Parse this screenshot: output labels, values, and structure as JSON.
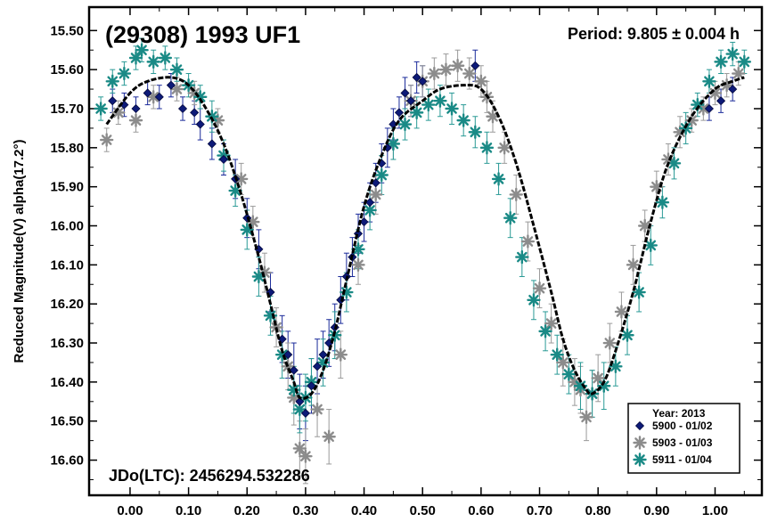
{
  "chart_data": {
    "type": "scatter",
    "title": "(29308) 1993 UF1",
    "period_label": "Period: 9.805 ± 0.004 h",
    "jdo_label": "JDo(LTC): 2456294.532286",
    "ylabel": "Reduced Magnitude(V) alpha(17.2°)",
    "xlabel": "",
    "xlim": [
      -0.07,
      1.08
    ],
    "ylim": [
      16.69,
      15.44
    ],
    "y_inverted": true,
    "x_ticks": [
      "0.00",
      "0.10",
      "0.20",
      "0.30",
      "0.40",
      "0.50",
      "0.60",
      "0.70",
      "0.80",
      "0.90",
      "1.00"
    ],
    "y_ticks": [
      "15.50",
      "15.60",
      "15.70",
      "15.80",
      "15.90",
      "16.00",
      "16.10",
      "16.20",
      "16.30",
      "16.40",
      "16.50",
      "16.60"
    ],
    "legend": {
      "title": "Year: 2013",
      "position": "bottom-right",
      "entries": [
        "5900 - 01/02",
        "5903 - 01/03",
        "5911 - 01/04"
      ]
    },
    "colors": {
      "series_5900": "#0d1a78",
      "series_5903": "#8c8c8c",
      "series_5911": "#1a8a86",
      "fit_curve": "#000000",
      "error_bars_5900": "#1a2a9a",
      "error_bars_5903": "#9a9a9a",
      "error_bars_5911": "#2a9a96"
    },
    "marker_shapes": {
      "5900": "diamond",
      "5903": "asterisk",
      "5911": "asterisk"
    },
    "fit_curve": {
      "x": [
        -0.04,
        0.0,
        0.03,
        0.07,
        0.1,
        0.13,
        0.16,
        0.19,
        0.22,
        0.24,
        0.26,
        0.28,
        0.29,
        0.31,
        0.33,
        0.35,
        0.37,
        0.4,
        0.43,
        0.46,
        0.5,
        0.53,
        0.57,
        0.6,
        0.63,
        0.66,
        0.69,
        0.72,
        0.74,
        0.76,
        0.78,
        0.79,
        0.81,
        0.83,
        0.86,
        0.89,
        0.92,
        0.96,
        1.0,
        1.03,
        1.05
      ],
      "y": [
        15.74,
        15.66,
        15.63,
        15.62,
        15.64,
        15.7,
        15.79,
        15.92,
        16.08,
        16.2,
        16.32,
        16.4,
        16.44,
        16.43,
        16.37,
        16.27,
        16.14,
        15.95,
        15.82,
        15.73,
        15.68,
        15.65,
        15.64,
        15.65,
        15.72,
        15.84,
        16.0,
        16.17,
        16.29,
        16.37,
        16.42,
        16.43,
        16.4,
        16.32,
        16.17,
        15.99,
        15.84,
        15.72,
        15.65,
        15.63,
        15.62
      ]
    },
    "series": [
      {
        "name": "5900 - 01/02",
        "x": [
          -0.03,
          -0.01,
          0.01,
          0.03,
          0.05,
          0.07,
          0.09,
          0.11,
          0.12,
          0.14,
          0.16,
          0.18,
          0.2,
          0.22,
          0.24,
          0.26,
          0.27,
          0.28,
          0.29,
          0.3,
          0.31,
          0.32,
          0.33,
          0.34,
          0.35,
          0.36,
          0.37,
          0.38,
          0.39,
          0.4,
          0.41,
          0.42,
          0.43,
          0.44,
          0.45,
          0.46,
          0.47,
          0.48,
          0.49,
          0.5,
          0.59,
          0.99,
          1.01,
          1.03
        ],
        "y": [
          15.68,
          15.69,
          15.7,
          15.66,
          15.67,
          15.64,
          15.7,
          15.71,
          15.74,
          15.79,
          15.83,
          15.88,
          15.98,
          16.06,
          16.17,
          16.29,
          16.33,
          16.37,
          16.45,
          16.48,
          16.41,
          16.36,
          16.33,
          16.3,
          16.26,
          16.19,
          16.13,
          16.08,
          16.02,
          15.99,
          15.94,
          15.89,
          15.84,
          15.8,
          15.74,
          15.71,
          15.66,
          15.68,
          15.62,
          15.63,
          15.59,
          15.7,
          15.68,
          15.65
        ],
        "err": [
          0.03,
          0.03,
          0.03,
          0.03,
          0.03,
          0.03,
          0.03,
          0.03,
          0.04,
          0.04,
          0.04,
          0.05,
          0.05,
          0.05,
          0.05,
          0.06,
          0.06,
          0.07,
          0.07,
          0.07,
          0.07,
          0.07,
          0.06,
          0.06,
          0.06,
          0.06,
          0.06,
          0.05,
          0.05,
          0.05,
          0.05,
          0.05,
          0.05,
          0.05,
          0.04,
          0.04,
          0.04,
          0.04,
          0.04,
          0.04,
          0.04,
          0.03,
          0.03,
          0.03
        ]
      },
      {
        "name": "5903 - 01/03",
        "x": [
          -0.04,
          -0.02,
          0.01,
          0.04,
          0.08,
          0.11,
          0.15,
          0.19,
          0.21,
          0.23,
          0.25,
          0.27,
          0.28,
          0.29,
          0.3,
          0.32,
          0.34,
          0.36,
          0.39,
          0.42,
          0.45,
          0.48,
          0.5,
          0.52,
          0.54,
          0.56,
          0.58,
          0.6,
          0.61,
          0.62,
          0.64,
          0.66,
          0.68,
          0.7,
          0.72,
          0.74,
          0.76,
          0.77,
          0.78,
          0.79,
          0.8,
          0.82,
          0.84,
          0.86,
          0.88,
          0.9,
          0.92,
          0.94,
          0.96,
          0.98,
          1.0,
          1.02,
          1.04
        ],
        "y": [
          15.78,
          15.71,
          15.73,
          15.67,
          15.65,
          15.66,
          15.73,
          15.88,
          15.99,
          16.12,
          16.26,
          16.36,
          16.44,
          16.57,
          16.59,
          16.47,
          16.54,
          16.33,
          16.1,
          15.92,
          15.79,
          15.68,
          15.63,
          15.61,
          15.6,
          15.59,
          15.61,
          15.63,
          15.67,
          15.72,
          15.8,
          15.92,
          16.04,
          16.16,
          16.25,
          16.35,
          16.4,
          16.42,
          16.49,
          16.43,
          16.39,
          16.3,
          16.22,
          16.1,
          16.0,
          15.9,
          15.83,
          15.76,
          15.73,
          15.7,
          15.66,
          15.64,
          15.61
        ],
        "err": [
          0.03,
          0.03,
          0.03,
          0.03,
          0.03,
          0.03,
          0.03,
          0.04,
          0.04,
          0.05,
          0.05,
          0.06,
          0.07,
          0.07,
          0.07,
          0.07,
          0.07,
          0.06,
          0.05,
          0.05,
          0.04,
          0.04,
          0.04,
          0.04,
          0.04,
          0.04,
          0.04,
          0.04,
          0.04,
          0.04,
          0.04,
          0.05,
          0.05,
          0.05,
          0.05,
          0.06,
          0.06,
          0.06,
          0.06,
          0.06,
          0.06,
          0.05,
          0.05,
          0.05,
          0.04,
          0.04,
          0.04,
          0.04,
          0.03,
          0.03,
          0.03,
          0.03,
          0.03
        ]
      },
      {
        "name": "5911 - 01/04",
        "x": [
          -0.05,
          -0.03,
          -0.01,
          0.01,
          0.02,
          0.04,
          0.06,
          0.08,
          0.1,
          0.12,
          0.14,
          0.16,
          0.18,
          0.2,
          0.22,
          0.24,
          0.26,
          0.28,
          0.29,
          0.3,
          0.31,
          0.33,
          0.35,
          0.37,
          0.39,
          0.41,
          0.43,
          0.45,
          0.47,
          0.49,
          0.51,
          0.53,
          0.55,
          0.57,
          0.59,
          0.61,
          0.63,
          0.65,
          0.67,
          0.69,
          0.71,
          0.73,
          0.75,
          0.77,
          0.79,
          0.81,
          0.83,
          0.85,
          0.87,
          0.89,
          0.91,
          0.93,
          0.95,
          0.97,
          0.99,
          1.01,
          1.03,
          1.05
        ],
        "y": [
          15.7,
          15.63,
          15.61,
          15.57,
          15.55,
          15.58,
          15.57,
          15.6,
          15.64,
          15.67,
          15.72,
          15.82,
          15.91,
          16.01,
          16.13,
          16.23,
          16.33,
          16.42,
          16.47,
          16.44,
          16.4,
          16.35,
          16.28,
          16.17,
          16.06,
          15.96,
          15.87,
          15.79,
          15.74,
          15.71,
          15.69,
          15.68,
          15.7,
          15.73,
          15.76,
          15.8,
          15.88,
          15.98,
          16.08,
          16.19,
          16.27,
          16.33,
          16.38,
          16.41,
          16.43,
          16.41,
          16.36,
          16.28,
          16.17,
          16.05,
          15.94,
          15.84,
          15.75,
          15.69,
          15.63,
          15.58,
          15.56,
          15.58
        ],
        "err": [
          0.03,
          0.03,
          0.03,
          0.03,
          0.03,
          0.03,
          0.03,
          0.03,
          0.03,
          0.03,
          0.04,
          0.04,
          0.04,
          0.05,
          0.05,
          0.05,
          0.06,
          0.06,
          0.06,
          0.06,
          0.06,
          0.06,
          0.06,
          0.05,
          0.05,
          0.05,
          0.05,
          0.04,
          0.04,
          0.04,
          0.04,
          0.04,
          0.04,
          0.04,
          0.04,
          0.04,
          0.04,
          0.05,
          0.05,
          0.05,
          0.05,
          0.05,
          0.05,
          0.06,
          0.06,
          0.06,
          0.05,
          0.05,
          0.05,
          0.05,
          0.04,
          0.04,
          0.04,
          0.03,
          0.03,
          0.03,
          0.03,
          0.03
        ]
      }
    ]
  }
}
